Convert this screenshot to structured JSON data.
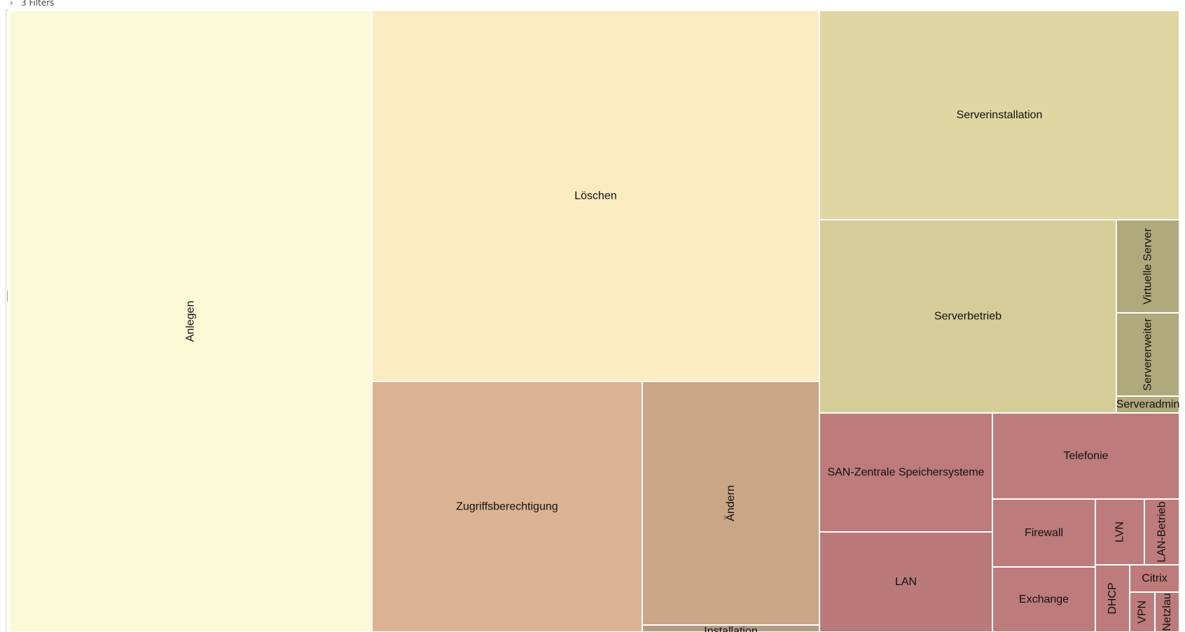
{
  "filters": {
    "chevron_icon": "chevron-right-icon",
    "label": "3 Filters"
  },
  "chart_data": {
    "type": "treemap",
    "tiles": [
      {
        "label": "Anlegen",
        "color": "#fafad7"
      },
      {
        "label": "Löschen",
        "color": "#faebc1"
      },
      {
        "label": "Zugriffsberechtigung",
        "color": "#dcb392"
      },
      {
        "label": "Ändern",
        "color": "#caa586"
      },
      {
        "label": "Installation",
        "color": "#b29a83"
      },
      {
        "label": "Serverinstallation",
        "color": "#dfd6a1"
      },
      {
        "label": "Serverbetrieb",
        "color": "#d6cc98"
      },
      {
        "label": "Virtuelle Server",
        "color": "#afa97c"
      },
      {
        "label": "Servererweiter",
        "color": "#afa97c"
      },
      {
        "label": "Serveradmin",
        "color": "#afa97c"
      },
      {
        "label": "SAN-Zentrale Speichersysteme",
        "color": "#be7b7b"
      },
      {
        "label": "LAN",
        "color": "#ba7a7a"
      },
      {
        "label": "Telefonie",
        "color": "#be7b7b"
      },
      {
        "label": "Firewall",
        "color": "#be7b7b"
      },
      {
        "label": "Exchange",
        "color": "#be7b7b"
      },
      {
        "label": "LVN",
        "color": "#be7b7b"
      },
      {
        "label": "LAN-Betrieb",
        "color": "#be7b7b"
      },
      {
        "label": "DHCP",
        "color": "#be7b7b"
      },
      {
        "label": "Citrix",
        "color": "#be7b7b"
      },
      {
        "label": "VPN",
        "color": "#be7b7b"
      },
      {
        "label": "Netzlau",
        "color": "#be7b7b"
      }
    ]
  }
}
